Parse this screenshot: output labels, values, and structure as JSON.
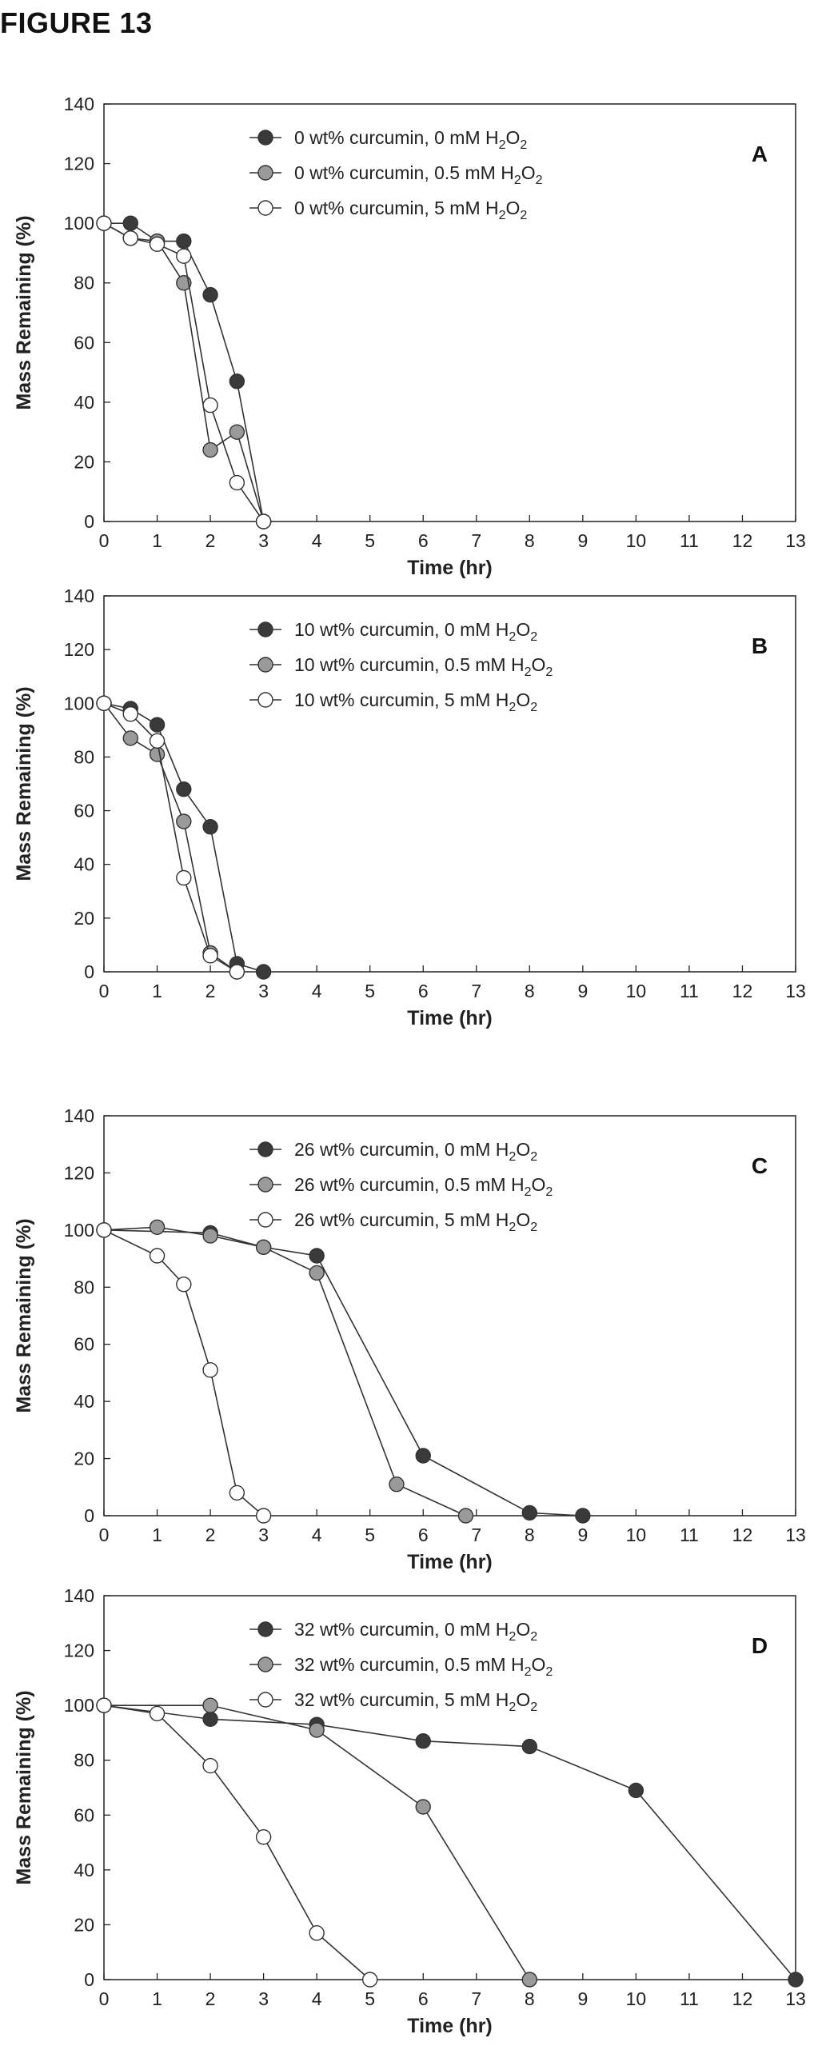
{
  "figure_title": "FIGURE 13",
  "colors": {
    "dark": "#3a3a3a",
    "medium": "#9a9a9a",
    "light": "#ffffff",
    "line": "#333333"
  },
  "chart_data": [
    {
      "type": "line",
      "panel_label": "A",
      "xlabel": "Time (hr)",
      "ylabel": "Mass Remaining (%)",
      "xlim": [
        0,
        13
      ],
      "ylim": [
        0,
        140
      ],
      "xticks": [
        0,
        1,
        2,
        3,
        4,
        5,
        6,
        7,
        8,
        9,
        10,
        11,
        12,
        13
      ],
      "yticks": [
        0,
        20,
        40,
        60,
        80,
        100,
        120,
        140
      ],
      "legend_position": "top-center",
      "series": [
        {
          "name": "0 wt% curcumin, 0 mM H2O2",
          "marker": "dark",
          "x": [
            0,
            0.5,
            1,
            1.5,
            2,
            2.5,
            3
          ],
          "y": [
            100,
            100,
            94,
            94,
            76,
            47,
            0
          ]
        },
        {
          "name": "0 wt% curcumin, 0.5 mM H2O2",
          "marker": "medium",
          "x": [
            0,
            0.5,
            1,
            1.5,
            2,
            2.5,
            3
          ],
          "y": [
            100,
            95,
            94,
            80,
            24,
            30,
            0
          ]
        },
        {
          "name": "0 wt% curcumin, 5 mM H2O2",
          "marker": "light",
          "x": [
            0,
            0.5,
            1,
            1.5,
            2,
            2.5,
            3
          ],
          "y": [
            100,
            95,
            93,
            89,
            39,
            13,
            0
          ]
        }
      ]
    },
    {
      "type": "line",
      "panel_label": "B",
      "xlabel": "Time (hr)",
      "ylabel": "Mass Remaining (%)",
      "xlim": [
        0,
        13
      ],
      "ylim": [
        0,
        140
      ],
      "xticks": [
        0,
        1,
        2,
        3,
        4,
        5,
        6,
        7,
        8,
        9,
        10,
        11,
        12,
        13
      ],
      "yticks": [
        0,
        20,
        40,
        60,
        80,
        100,
        120,
        140
      ],
      "legend_position": "top-center",
      "series": [
        {
          "name": "10 wt% curcumin, 0 mM H2O2",
          "marker": "dark",
          "x": [
            0,
            0.5,
            1,
            1.5,
            2,
            2.5,
            3
          ],
          "y": [
            100,
            98,
            92,
            68,
            54,
            3,
            0
          ]
        },
        {
          "name": "10 wt% curcumin, 0.5 mM H2O2",
          "marker": "medium",
          "x": [
            0,
            0.5,
            1,
            1.5,
            2,
            2.5
          ],
          "y": [
            100,
            87,
            81,
            56,
            7,
            0
          ]
        },
        {
          "name": "10 wt% curcumin, 5 mM H2O2",
          "marker": "light",
          "x": [
            0,
            0.5,
            1,
            1.5,
            2,
            2.5
          ],
          "y": [
            100,
            96,
            86,
            35,
            6,
            0
          ]
        }
      ]
    },
    {
      "type": "line",
      "panel_label": "C",
      "xlabel": "Time (hr)",
      "ylabel": "Mass Remaining (%)",
      "xlim": [
        0,
        13
      ],
      "ylim": [
        0,
        140
      ],
      "xticks": [
        0,
        1,
        2,
        3,
        4,
        5,
        6,
        7,
        8,
        9,
        10,
        11,
        12,
        13
      ],
      "yticks": [
        0,
        20,
        40,
        60,
        80,
        100,
        120,
        140
      ],
      "legend_position": "top-center",
      "series": [
        {
          "name": "26 wt% curcumin, 0 mM H2O2",
          "marker": "dark",
          "x": [
            0,
            2,
            3,
            4,
            6,
            8,
            9
          ],
          "y": [
            100,
            99,
            94,
            91,
            21,
            1,
            0
          ]
        },
        {
          "name": "26 wt% curcumin, 0.5 mM H2O2",
          "marker": "medium",
          "x": [
            0,
            1,
            2,
            3,
            4,
            5.5,
            6.8
          ],
          "y": [
            100,
            101,
            98,
            94,
            85,
            11,
            0
          ]
        },
        {
          "name": "26 wt% curcumin, 5 mM H2O2",
          "marker": "light",
          "x": [
            0,
            1,
            1.5,
            2,
            2.5,
            3
          ],
          "y": [
            100,
            91,
            81,
            51,
            8,
            0
          ]
        }
      ]
    },
    {
      "type": "line",
      "panel_label": "D",
      "xlabel": "Time (hr)",
      "ylabel": "Mass Remaining (%)",
      "xlim": [
        0,
        13
      ],
      "ylim": [
        0,
        140
      ],
      "xticks": [
        0,
        1,
        2,
        3,
        4,
        5,
        6,
        7,
        8,
        9,
        10,
        11,
        12,
        13
      ],
      "yticks": [
        0,
        20,
        40,
        60,
        80,
        100,
        120,
        140
      ],
      "legend_position": "top-center",
      "series": [
        {
          "name": "32 wt% curcumin, 0 mM H2O2",
          "marker": "dark",
          "x": [
            0,
            2,
            4,
            6,
            8,
            10,
            13
          ],
          "y": [
            100,
            95,
            93,
            87,
            85,
            69,
            0
          ]
        },
        {
          "name": "32 wt% curcumin, 0.5 mM H2O2",
          "marker": "medium",
          "x": [
            0,
            2,
            4,
            6,
            8
          ],
          "y": [
            100,
            100,
            91,
            63,
            0
          ]
        },
        {
          "name": "32 wt% curcumin, 5 mM H2O2",
          "marker": "light",
          "x": [
            0,
            1,
            2,
            3,
            4,
            5
          ],
          "y": [
            100,
            97,
            78,
            52,
            17,
            0
          ]
        }
      ]
    }
  ]
}
